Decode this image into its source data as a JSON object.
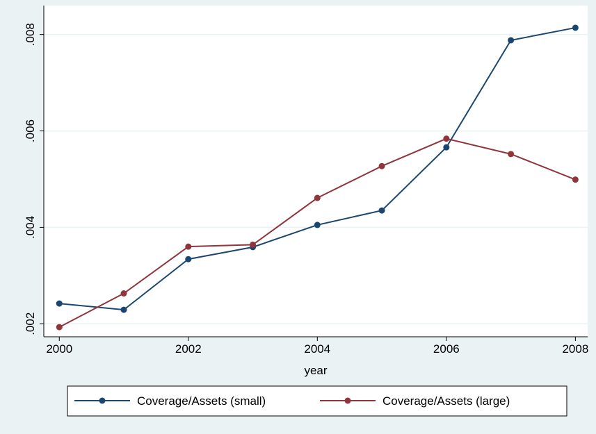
{
  "chart_data": {
    "type": "line",
    "x_label": "year",
    "x": [
      2000,
      2001,
      2002,
      2003,
      2004,
      2005,
      2006,
      2007,
      2008
    ],
    "series": [
      {
        "name": "Coverage/Assets (small)",
        "color": "#1a476f",
        "values": [
          0.00242,
          0.00229,
          0.00334,
          0.00359,
          0.00405,
          0.00435,
          0.00566,
          0.00788,
          0.00814
        ]
      },
      {
        "name": "Coverage/Assets (large)",
        "color": "#90353b",
        "values": [
          0.00193,
          0.00263,
          0.0036,
          0.00364,
          0.00461,
          0.00527,
          0.00584,
          0.00552,
          0.00499
        ]
      }
    ],
    "xlim": [
      1999.76,
      2008.19
    ],
    "xticks": [
      2000,
      2002,
      2004,
      2006,
      2008
    ],
    "ylim": [
      0.00173,
      0.0086
    ],
    "yticks": [
      {
        "value": 0.002,
        "label": ".002"
      },
      {
        "value": 0.004,
        "label": ".004"
      },
      {
        "value": 0.006,
        "label": ".006"
      },
      {
        "value": 0.008,
        "label": ".008"
      }
    ],
    "grid": true,
    "legend": "bottom"
  }
}
